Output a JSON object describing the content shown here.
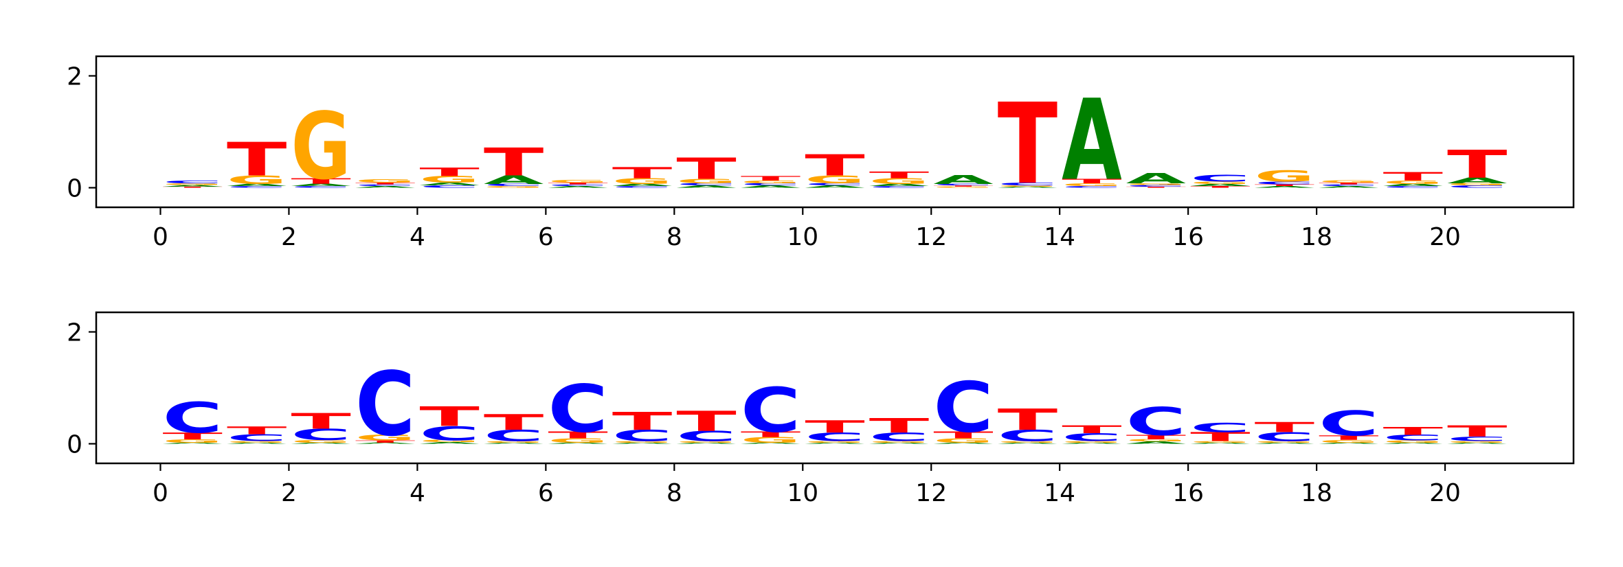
{
  "colors": {
    "A": "#008000",
    "C": "#0000ff",
    "G": "#ffa500",
    "T": "#ff0000"
  },
  "chart_data": [
    {
      "type": "sequence_logo",
      "title": "",
      "xlabel": "",
      "ylabel": "",
      "xlim": [
        -1,
        22
      ],
      "ylim": [
        -0.35,
        2.35
      ],
      "xticks": [
        0,
        2,
        4,
        6,
        8,
        10,
        12,
        14,
        16,
        18,
        20
      ],
      "xtick_labels": [
        "0",
        "2",
        "4",
        "6",
        "8",
        "10",
        "12",
        "14",
        "16",
        "18",
        "20"
      ],
      "yticks": [
        0,
        2
      ],
      "ytick_labels": [
        "0",
        "2"
      ],
      "positions": [
        {
          "pos": 0,
          "heights": {
            "A": 0.03,
            "C": 0.05,
            "G": 0.03,
            "T": 0.02
          }
        },
        {
          "pos": 1,
          "heights": {
            "A": 0.04,
            "C": 0.03,
            "G": 0.15,
            "T": 0.6
          }
        },
        {
          "pos": 2,
          "heights": {
            "A": 0.04,
            "C": 0.03,
            "G": 1.2,
            "T": 0.1
          }
        },
        {
          "pos": 3,
          "heights": {
            "A": 0.03,
            "C": 0.03,
            "G": 0.06,
            "T": 0.03
          }
        },
        {
          "pos": 4,
          "heights": {
            "A": 0.05,
            "C": 0.04,
            "G": 0.12,
            "T": 0.15
          }
        },
        {
          "pos": 5,
          "heights": {
            "A": 0.15,
            "C": 0.04,
            "G": 0.03,
            "T": 0.5
          }
        },
        {
          "pos": 6,
          "heights": {
            "A": 0.03,
            "C": 0.03,
            "G": 0.05,
            "T": 0.03
          }
        },
        {
          "pos": 7,
          "heights": {
            "A": 0.04,
            "C": 0.03,
            "G": 0.1,
            "T": 0.2
          }
        },
        {
          "pos": 8,
          "heights": {
            "A": 0.04,
            "C": 0.04,
            "G": 0.08,
            "T": 0.38
          }
        },
        {
          "pos": 9,
          "heights": {
            "A": 0.04,
            "C": 0.04,
            "G": 0.05,
            "T": 0.08
          }
        },
        {
          "pos": 10,
          "heights": {
            "A": 0.04,
            "C": 0.04,
            "G": 0.14,
            "T": 0.38
          }
        },
        {
          "pos": 11,
          "heights": {
            "A": 0.04,
            "C": 0.03,
            "G": 0.1,
            "T": 0.12
          }
        },
        {
          "pos": 12,
          "heights": {
            "A": 0.16,
            "C": 0.03,
            "G": 0.02,
            "T": 0.02
          }
        },
        {
          "pos": 13,
          "heights": {
            "A": 0.02,
            "C": 0.05,
            "G": 0.02,
            "T": 1.45
          }
        },
        {
          "pos": 14,
          "heights": {
            "A": 1.45,
            "C": 0.03,
            "G": 0.05,
            "T": 0.08
          }
        },
        {
          "pos": 15,
          "heights": {
            "A": 0.18,
            "C": 0.03,
            "G": 0.03,
            "T": 0.02
          }
        },
        {
          "pos": 16,
          "heights": {
            "A": 0.04,
            "C": 0.12,
            "G": 0.04,
            "T": 0.03
          }
        },
        {
          "pos": 17,
          "heights": {
            "A": 0.03,
            "C": 0.05,
            "G": 0.2,
            "T": 0.03
          }
        },
        {
          "pos": 18,
          "heights": {
            "A": 0.03,
            "C": 0.03,
            "G": 0.04,
            "T": 0.03
          }
        },
        {
          "pos": 19,
          "heights": {
            "A": 0.04,
            "C": 0.03,
            "G": 0.06,
            "T": 0.15
          }
        },
        {
          "pos": 20,
          "heights": {
            "A": 0.1,
            "C": 0.04,
            "G": 0.04,
            "T": 0.5
          }
        }
      ]
    },
    {
      "type": "sequence_logo",
      "title": "",
      "xlabel": "",
      "ylabel": "",
      "xlim": [
        -1,
        22
      ],
      "ylim": [
        -0.35,
        2.35
      ],
      "xticks": [
        0,
        2,
        4,
        6,
        8,
        10,
        12,
        14,
        16,
        18,
        20
      ],
      "xtick_labels": [
        "0",
        "2",
        "4",
        "6",
        "8",
        "10",
        "12",
        "14",
        "16",
        "18",
        "20"
      ],
      "yticks": [
        0,
        2
      ],
      "ytick_labels": [
        "0",
        "2"
      ],
      "positions": [
        {
          "pos": 0,
          "heights": {
            "A": 0.02,
            "C": 0.55,
            "G": 0.06,
            "T": 0.12
          }
        },
        {
          "pos": 1,
          "heights": {
            "A": 0.02,
            "C": 0.12,
            "G": 0.03,
            "T": 0.14
          }
        },
        {
          "pos": 2,
          "heights": {
            "A": 0.02,
            "C": 0.2,
            "G": 0.05,
            "T": 0.28
          }
        },
        {
          "pos": 3,
          "heights": {
            "A": 0.02,
            "C": 1.15,
            "G": 0.1,
            "T": 0.04
          }
        },
        {
          "pos": 4,
          "heights": {
            "A": 0.03,
            "C": 0.25,
            "G": 0.04,
            "T": 0.35
          }
        },
        {
          "pos": 5,
          "heights": {
            "A": 0.02,
            "C": 0.2,
            "G": 0.03,
            "T": 0.28
          }
        },
        {
          "pos": 6,
          "heights": {
            "A": 0.02,
            "C": 0.85,
            "G": 0.08,
            "T": 0.12
          }
        },
        {
          "pos": 7,
          "heights": {
            "A": 0.02,
            "C": 0.2,
            "G": 0.03,
            "T": 0.32
          }
        },
        {
          "pos": 8,
          "heights": {
            "A": 0.02,
            "C": 0.18,
            "G": 0.03,
            "T": 0.36
          }
        },
        {
          "pos": 9,
          "heights": {
            "A": 0.02,
            "C": 0.8,
            "G": 0.1,
            "T": 0.1
          }
        },
        {
          "pos": 10,
          "heights": {
            "A": 0.02,
            "C": 0.15,
            "G": 0.03,
            "T": 0.22
          }
        },
        {
          "pos": 11,
          "heights": {
            "A": 0.02,
            "C": 0.15,
            "G": 0.03,
            "T": 0.26
          }
        },
        {
          "pos": 12,
          "heights": {
            "A": 0.02,
            "C": 0.9,
            "G": 0.08,
            "T": 0.12
          }
        },
        {
          "pos": 13,
          "heights": {
            "A": 0.02,
            "C": 0.2,
            "G": 0.03,
            "T": 0.38
          }
        },
        {
          "pos": 14,
          "heights": {
            "A": 0.02,
            "C": 0.14,
            "G": 0.03,
            "T": 0.14
          }
        },
        {
          "pos": 15,
          "heights": {
            "A": 0.04,
            "C": 0.5,
            "G": 0.04,
            "T": 0.08
          }
        },
        {
          "pos": 16,
          "heights": {
            "A": 0.02,
            "C": 0.17,
            "G": 0.03,
            "T": 0.16
          }
        },
        {
          "pos": 17,
          "heights": {
            "A": 0.02,
            "C": 0.16,
            "G": 0.03,
            "T": 0.18
          }
        },
        {
          "pos": 18,
          "heights": {
            "A": 0.02,
            "C": 0.45,
            "G": 0.05,
            "T": 0.08
          }
        },
        {
          "pos": 19,
          "heights": {
            "A": 0.02,
            "C": 0.1,
            "G": 0.04,
            "T": 0.14
          }
        },
        {
          "pos": 20,
          "heights": {
            "A": 0.02,
            "C": 0.08,
            "G": 0.03,
            "T": 0.2
          }
        }
      ]
    }
  ]
}
